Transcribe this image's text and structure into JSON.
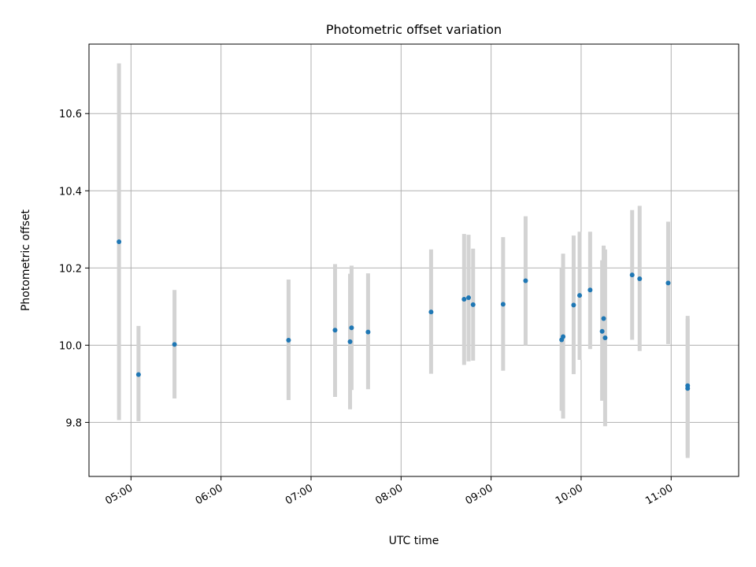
{
  "chart_data": {
    "type": "scatter",
    "title": "Photometric offset variation",
    "xlabel": "UTC time",
    "ylabel": "Photometric offset",
    "x_unit": "UTC time (HH:MM)",
    "xlim": [
      "04:32",
      "11:45"
    ],
    "ylim": [
      9.66,
      10.78
    ],
    "xticks": [
      "05:00",
      "06:00",
      "07:00",
      "08:00",
      "09:00",
      "10:00",
      "11:00"
    ],
    "yticks": [
      9.8,
      10.0,
      10.2,
      10.4,
      10.6
    ],
    "grid": true,
    "point_color": "#1f77b4",
    "errorbar_color": "#d3d3d3",
    "series": [
      {
        "points": [
          {
            "x": "04:52",
            "y": 10.268,
            "ylo": 9.806,
            "yhi": 10.73
          },
          {
            "x": "05:05",
            "y": 9.924,
            "ylo": 9.803,
            "yhi": 10.05
          },
          {
            "x": "05:29",
            "y": 10.002,
            "ylo": 9.862,
            "yhi": 10.143
          },
          {
            "x": "06:45",
            "y": 10.013,
            "ylo": 9.858,
            "yhi": 10.17
          },
          {
            "x": "07:16",
            "y": 10.039,
            "ylo": 9.866,
            "yhi": 10.21
          },
          {
            "x": "07:26",
            "y": 10.009,
            "ylo": 9.834,
            "yhi": 10.185
          },
          {
            "x": "07:27",
            "y": 10.045,
            "ylo": 9.884,
            "yhi": 10.206
          },
          {
            "x": "07:38",
            "y": 10.034,
            "ylo": 9.886,
            "yhi": 10.186
          },
          {
            "x": "08:20",
            "y": 10.086,
            "ylo": 9.926,
            "yhi": 10.248
          },
          {
            "x": "08:42",
            "y": 10.119,
            "ylo": 9.949,
            "yhi": 10.288
          },
          {
            "x": "08:45",
            "y": 10.123,
            "ylo": 9.958,
            "yhi": 10.286
          },
          {
            "x": "08:48",
            "y": 10.105,
            "ylo": 9.96,
            "yhi": 10.25
          },
          {
            "x": "09:08",
            "y": 10.106,
            "ylo": 9.934,
            "yhi": 10.28
          },
          {
            "x": "09:23",
            "y": 10.167,
            "ylo": 10.0,
            "yhi": 10.334
          },
          {
            "x": "09:47",
            "y": 10.014,
            "ylo": 9.83,
            "yhi": 10.2
          },
          {
            "x": "09:48",
            "y": 10.022,
            "ylo": 9.81,
            "yhi": 10.237
          },
          {
            "x": "09:55",
            "y": 10.104,
            "ylo": 9.925,
            "yhi": 10.284
          },
          {
            "x": "09:59",
            "y": 10.129,
            "ylo": 9.962,
            "yhi": 10.294
          },
          {
            "x": "10:06",
            "y": 10.143,
            "ylo": 9.99,
            "yhi": 10.294
          },
          {
            "x": "10:14",
            "y": 10.036,
            "ylo": 9.856,
            "yhi": 10.22
          },
          {
            "x": "10:15",
            "y": 10.069,
            "ylo": 9.878,
            "yhi": 10.258
          },
          {
            "x": "10:16",
            "y": 10.019,
            "ylo": 9.79,
            "yhi": 10.248
          },
          {
            "x": "10:34",
            "y": 10.182,
            "ylo": 10.014,
            "yhi": 10.35
          },
          {
            "x": "10:39",
            "y": 10.172,
            "ylo": 9.985,
            "yhi": 10.361
          },
          {
            "x": "10:58",
            "y": 10.161,
            "ylo": 10.003,
            "yhi": 10.32
          },
          {
            "x": "11:11",
            "y": 9.895,
            "ylo": 9.714,
            "yhi": 10.076
          },
          {
            "x": "11:11",
            "y": 9.888,
            "ylo": 9.708,
            "yhi": 10.068
          }
        ]
      }
    ]
  }
}
